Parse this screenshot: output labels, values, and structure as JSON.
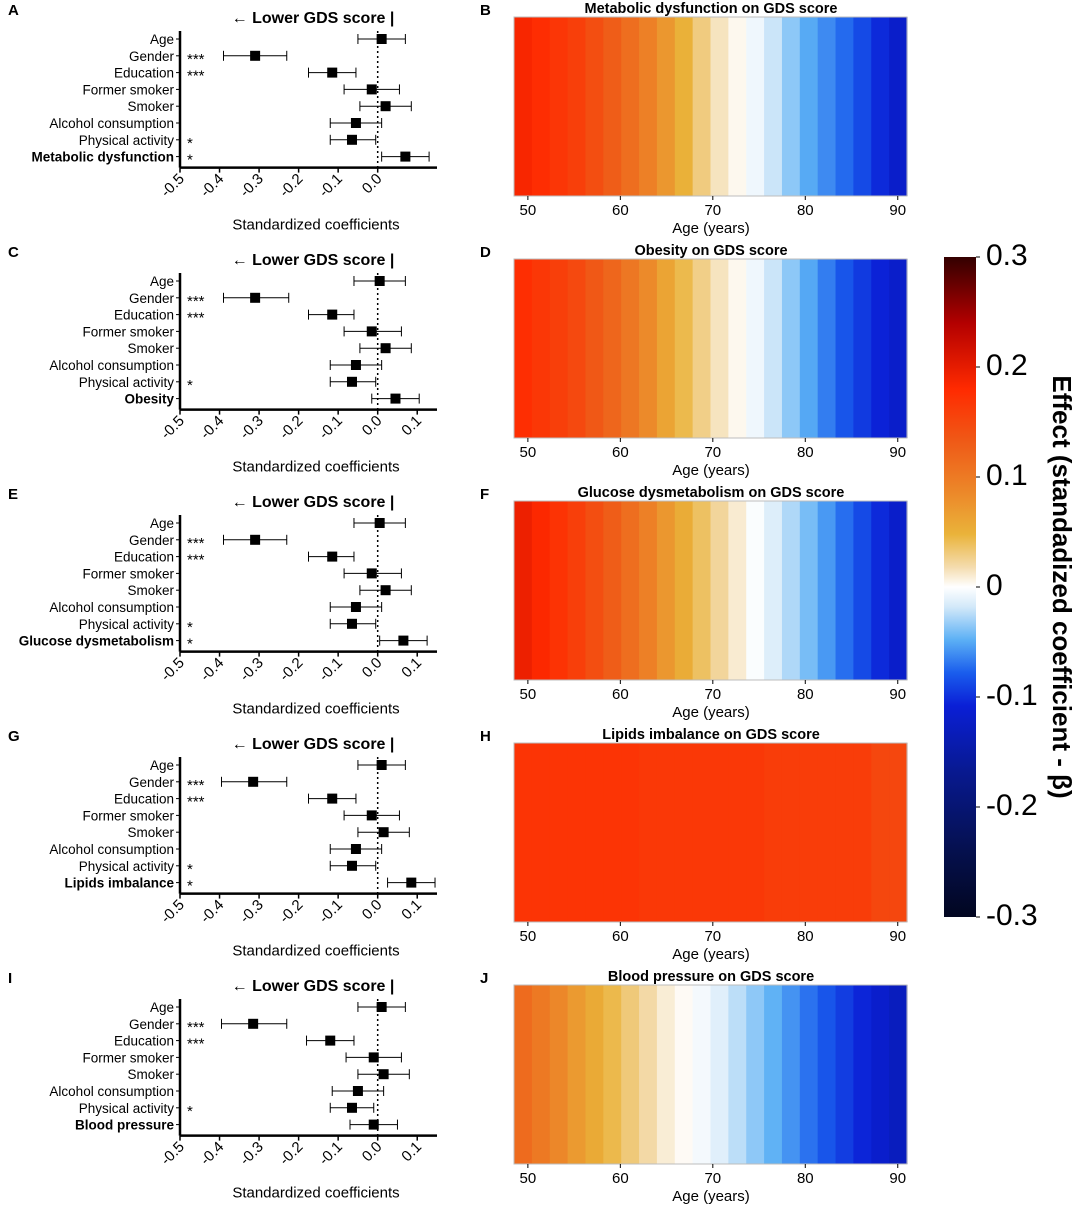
{
  "chart_data": {
    "type": "forest_and_heatmap",
    "forest_common": {
      "arrow_label": "← Lower GDS score |",
      "x_label": "Standardized coefficients",
      "ticks": [
        "-0.5",
        "-0.4",
        "-0.3",
        "-0.2",
        "-0.1",
        "0.0",
        "0.1"
      ],
      "rows": [
        "Age",
        "Gender",
        "Education",
        "Former smoker",
        "Smoker",
        "Alcohol consumption",
        "Physical activity"
      ]
    },
    "heatmap_common": {
      "x_label": "Age (years)",
      "ticks": [
        "50",
        "60",
        "70",
        "80",
        "90"
      ],
      "age_range": [
        48.5,
        91
      ]
    },
    "colorbar": {
      "title": "Effect (standadized coefficient - β)",
      "ticks": [
        "0.3",
        "0.2",
        "0.1",
        "0",
        "-0.1",
        "-0.2",
        "-0.3"
      ],
      "range": [
        -0.3,
        0.3
      ]
    },
    "panels": [
      {
        "forest_letter": "A",
        "heatmap_letter": "B",
        "exposure": "Metabolic dysfunction",
        "heatmap_title": "Metabolic dysfunction on GDS score",
        "xlim": [
          -0.5,
          0.15
        ],
        "max_tick_index": 5,
        "sig": [
          "",
          "***",
          "***",
          "",
          "",
          "",
          "*",
          "*"
        ],
        "estimates": [
          {
            "est": 0.01,
            "lo": -0.05,
            "hi": 0.07
          },
          {
            "est": -0.31,
            "lo": -0.39,
            "hi": -0.23
          },
          {
            "est": -0.115,
            "lo": -0.175,
            "hi": -0.055
          },
          {
            "est": -0.015,
            "lo": -0.085,
            "hi": 0.055
          },
          {
            "est": 0.02,
            "lo": -0.045,
            "hi": 0.085
          },
          {
            "est": -0.055,
            "lo": -0.12,
            "hi": 0.01
          },
          {
            "est": -0.065,
            "lo": -0.12,
            "hi": -0.005
          },
          {
            "est": 0.07,
            "lo": 0.01,
            "hi": 0.13
          }
        ],
        "age_effect": [
          [
            48.5,
            0.19
          ],
          [
            55,
            0.16
          ],
          [
            60,
            0.12
          ],
          [
            65,
            0.07
          ],
          [
            70,
            0.02
          ],
          [
            75,
            -0.01
          ],
          [
            80,
            -0.05
          ],
          [
            85,
            -0.08
          ],
          [
            90,
            -0.12
          ],
          [
            91,
            -0.13
          ]
        ]
      },
      {
        "forest_letter": "C",
        "heatmap_letter": "D",
        "exposure": "Obesity",
        "heatmap_title": "Obesity on GDS score",
        "xlim": [
          -0.5,
          0.15
        ],
        "max_tick_index": 6,
        "sig": [
          "",
          "***",
          "***",
          "",
          "",
          "",
          "*",
          ""
        ],
        "estimates": [
          {
            "est": 0.005,
            "lo": -0.06,
            "hi": 0.07
          },
          {
            "est": -0.31,
            "lo": -0.39,
            "hi": -0.225
          },
          {
            "est": -0.115,
            "lo": -0.175,
            "hi": -0.06
          },
          {
            "est": -0.015,
            "lo": -0.085,
            "hi": 0.06
          },
          {
            "est": 0.02,
            "lo": -0.045,
            "hi": 0.085
          },
          {
            "est": -0.055,
            "lo": -0.12,
            "hi": 0.01
          },
          {
            "est": -0.065,
            "lo": -0.12,
            "hi": -0.005
          },
          {
            "est": 0.045,
            "lo": -0.015,
            "hi": 0.105
          }
        ],
        "age_effect": [
          [
            48.5,
            0.18
          ],
          [
            55,
            0.15
          ],
          [
            60,
            0.11
          ],
          [
            65,
            0.06
          ],
          [
            70,
            0.02
          ],
          [
            75,
            -0.01
          ],
          [
            80,
            -0.05
          ],
          [
            85,
            -0.09
          ],
          [
            90,
            -0.12
          ],
          [
            91,
            -0.13
          ]
        ]
      },
      {
        "forest_letter": "E",
        "heatmap_letter": "F",
        "exposure": "Glucose dysmetabolism",
        "heatmap_title": "Glucose dysmetabolism on GDS score",
        "xlim": [
          -0.5,
          0.15
        ],
        "max_tick_index": 6,
        "sig": [
          "",
          "***",
          "***",
          "",
          "",
          "",
          "*",
          "*"
        ],
        "estimates": [
          {
            "est": 0.005,
            "lo": -0.06,
            "hi": 0.07
          },
          {
            "est": -0.31,
            "lo": -0.39,
            "hi": -0.23
          },
          {
            "est": -0.115,
            "lo": -0.175,
            "hi": -0.06
          },
          {
            "est": -0.015,
            "lo": -0.085,
            "hi": 0.06
          },
          {
            "est": 0.02,
            "lo": -0.045,
            "hi": 0.085
          },
          {
            "est": -0.055,
            "lo": -0.12,
            "hi": 0.01
          },
          {
            "est": -0.065,
            "lo": -0.12,
            "hi": -0.005
          },
          {
            "est": 0.065,
            "lo": 0.005,
            "hi": 0.125
          }
        ],
        "age_effect": [
          [
            48.5,
            0.2
          ],
          [
            55,
            0.16
          ],
          [
            60,
            0.12
          ],
          [
            65,
            0.07
          ],
          [
            70,
            0.03
          ],
          [
            75,
            -0.005
          ],
          [
            80,
            -0.04
          ],
          [
            85,
            -0.08
          ],
          [
            90,
            -0.12
          ],
          [
            91,
            -0.13
          ]
        ]
      },
      {
        "forest_letter": "G",
        "heatmap_letter": "H",
        "exposure": "Lipids imbalance",
        "heatmap_title": "Lipids imbalance on GDS score",
        "xlim": [
          -0.5,
          0.15
        ],
        "max_tick_index": 6,
        "sig": [
          "",
          "***",
          "***",
          "",
          "",
          "",
          "*",
          "*"
        ],
        "estimates": [
          {
            "est": 0.01,
            "lo": -0.05,
            "hi": 0.07
          },
          {
            "est": -0.315,
            "lo": -0.395,
            "hi": -0.23
          },
          {
            "est": -0.115,
            "lo": -0.175,
            "hi": -0.055
          },
          {
            "est": -0.015,
            "lo": -0.085,
            "hi": 0.055
          },
          {
            "est": 0.015,
            "lo": -0.05,
            "hi": 0.08
          },
          {
            "est": -0.055,
            "lo": -0.12,
            "hi": 0.01
          },
          {
            "est": -0.065,
            "lo": -0.12,
            "hi": -0.005
          },
          {
            "est": 0.085,
            "lo": 0.025,
            "hi": 0.145
          }
        ],
        "age_effect": [
          [
            48.5,
            0.17
          ],
          [
            62.5,
            0.17
          ],
          [
            63,
            0.165
          ],
          [
            75,
            0.165
          ],
          [
            75.5,
            0.16
          ],
          [
            87,
            0.16
          ],
          [
            87.5,
            0.15
          ],
          [
            91,
            0.15
          ]
        ]
      },
      {
        "forest_letter": "I",
        "heatmap_letter": "J",
        "exposure": "Blood pressure",
        "heatmap_title": "Blood pressure on GDS score",
        "xlim": [
          -0.5,
          0.15
        ],
        "max_tick_index": 6,
        "sig": [
          "",
          "***",
          "***",
          "",
          "",
          "",
          "*",
          ""
        ],
        "estimates": [
          {
            "est": 0.01,
            "lo": -0.05,
            "hi": 0.07
          },
          {
            "est": -0.315,
            "lo": -0.395,
            "hi": -0.23
          },
          {
            "est": -0.12,
            "lo": -0.18,
            "hi": -0.06
          },
          {
            "est": -0.01,
            "lo": -0.08,
            "hi": 0.06
          },
          {
            "est": 0.015,
            "lo": -0.05,
            "hi": 0.08
          },
          {
            "est": -0.05,
            "lo": -0.115,
            "hi": 0.015
          },
          {
            "est": -0.065,
            "lo": -0.12,
            "hi": -0.01
          },
          {
            "est": -0.01,
            "lo": -0.07,
            "hi": 0.05
          }
        ],
        "age_effect": [
          [
            48.5,
            0.12
          ],
          [
            55,
            0.07
          ],
          [
            60,
            0.04
          ],
          [
            65,
            0.01
          ],
          [
            70,
            -0.01
          ],
          [
            75,
            -0.04
          ],
          [
            80,
            -0.07
          ],
          [
            85,
            -0.1
          ],
          [
            90,
            -0.13
          ],
          [
            91,
            -0.135
          ]
        ]
      }
    ]
  }
}
